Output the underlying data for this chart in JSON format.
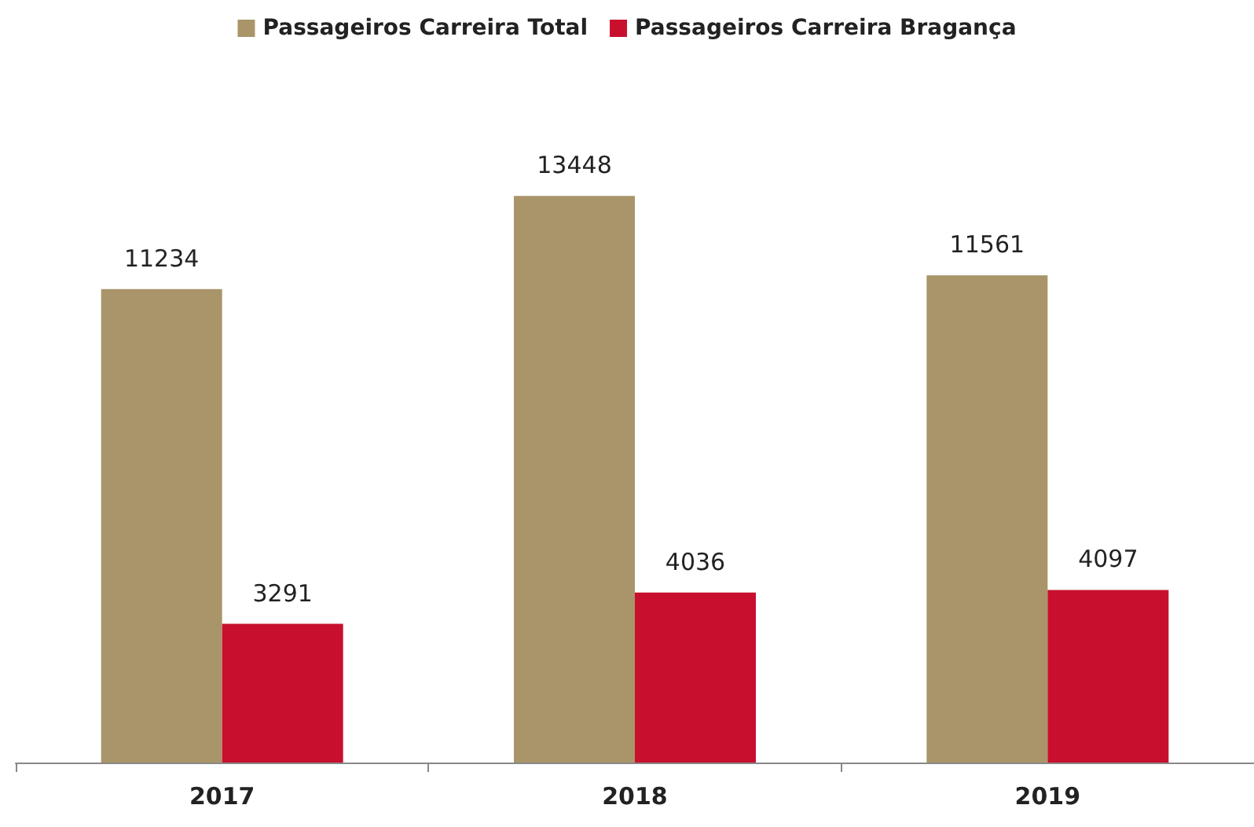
{
  "chart_data": {
    "type": "bar",
    "categories": [
      "2017",
      "2018",
      "2019"
    ],
    "series": [
      {
        "name": "Passageiros Carreira Total",
        "color": "#a99569",
        "values": [
          11234,
          13448,
          11561
        ]
      },
      {
        "name": "Passageiros Carreira Bragança",
        "color": "#c8102e",
        "values": [
          3291,
          4036,
          4097
        ]
      }
    ],
    "data_labels": true,
    "legend": "top"
  }
}
